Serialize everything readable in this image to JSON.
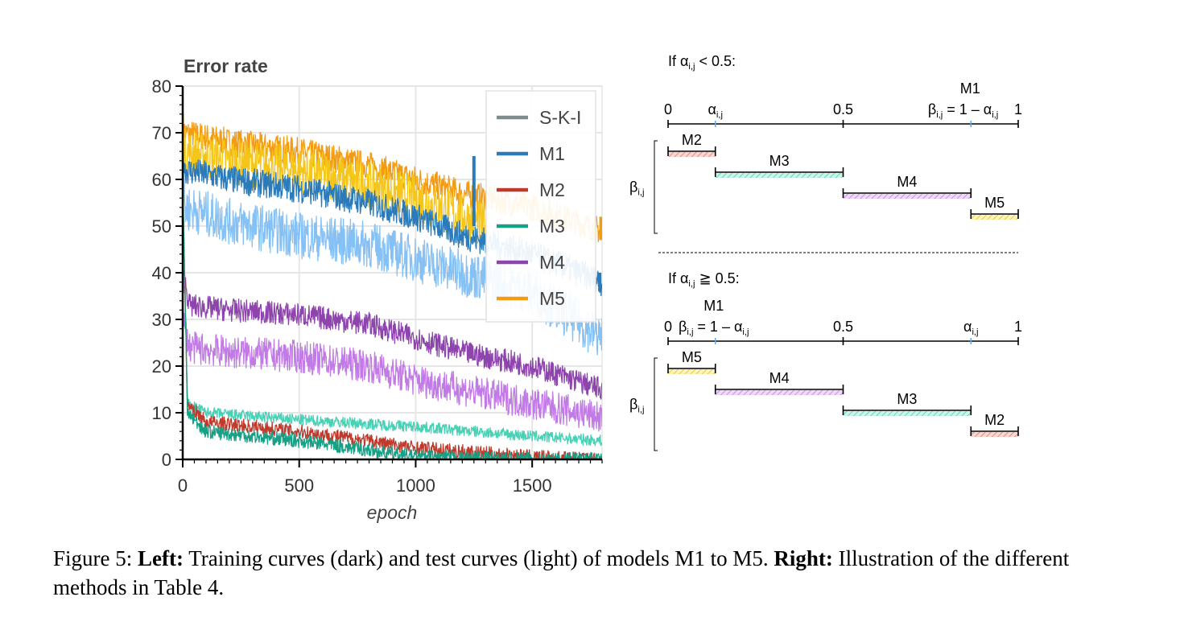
{
  "chart_data": [
    {
      "type": "line",
      "title": "Error rate",
      "xlabel": "epoch",
      "ylabel": "",
      "xlim": [
        0,
        1800
      ],
      "ylim": [
        0,
        80
      ],
      "xticks": [
        0,
        500,
        1000,
        1500
      ],
      "yticks": [
        0,
        10,
        20,
        30,
        40,
        50,
        60,
        70,
        80
      ],
      "grid": true,
      "legend_position": "top-right",
      "legend": [
        "S-K-I",
        "M1",
        "M2",
        "M3",
        "M4",
        "M5"
      ],
      "colors": {
        "S-K-I": "#7f8c8d",
        "M1": "#2b7bba",
        "M2": "#c0392b",
        "M3": "#16a085",
        "M4": "#8e44ad",
        "M5": "#f39c12",
        "M1_test": "#85c1f5",
        "M2_test": "#e07a6e",
        "M3_test": "#48d1b5",
        "M4_test": "#c27be6",
        "M5_test": "#f5c518"
      },
      "series": [
        {
          "name": "M5 (train)",
          "color_key": "M5",
          "noise": 3,
          "x": [
            0,
            10,
            200,
            500,
            800,
            1000,
            1200,
            1500,
            1800
          ],
          "y": [
            72,
            70,
            68,
            66,
            63,
            60,
            57,
            54,
            49
          ]
        },
        {
          "name": "M5 (test)",
          "color_key": "M5_test",
          "noise": 5,
          "x": [
            0,
            10,
            200,
            500,
            800,
            1000,
            1200,
            1300
          ],
          "y": [
            70,
            66,
            64,
            62,
            59,
            56,
            52,
            50
          ]
        },
        {
          "name": "M1 (train)",
          "color_key": "M1",
          "noise": 3,
          "x": [
            0,
            10,
            200,
            500,
            800,
            1000,
            1200,
            1500,
            1800
          ],
          "y": [
            66,
            62,
            60,
            58,
            55,
            52,
            48,
            44,
            38
          ]
        },
        {
          "name": "M1 (test)",
          "color_key": "M1_test",
          "noise": 5,
          "x": [
            0,
            10,
            200,
            500,
            800,
            1000,
            1200,
            1500,
            1800
          ],
          "y": [
            60,
            54,
            51,
            48,
            46,
            43,
            40,
            36,
            26
          ]
        },
        {
          "name": "M4 (train)",
          "color_key": "M4",
          "noise": 2.5,
          "x": [
            0,
            30,
            200,
            500,
            800,
            1000,
            1200,
            1500,
            1800
          ],
          "y": [
            40,
            33,
            32,
            31,
            29,
            26,
            23,
            20,
            15
          ]
        },
        {
          "name": "M4 (test)",
          "color_key": "M4_test",
          "noise": 3.5,
          "x": [
            0,
            30,
            200,
            500,
            800,
            1000,
            1200,
            1500,
            1800
          ],
          "y": [
            30,
            24,
            23,
            22,
            20,
            17,
            15,
            12,
            9
          ]
        },
        {
          "name": "M3 (test)",
          "color_key": "M3_test",
          "noise": 1.2,
          "x": [
            0,
            20,
            100,
            500,
            1000,
            1500,
            1800
          ],
          "y": [
            60,
            12,
            10,
            8.5,
            7,
            5,
            4
          ]
        },
        {
          "name": "M2 (train)",
          "color_key": "M2",
          "noise": 1.5,
          "x": [
            0,
            20,
            100,
            500,
            800,
            1000,
            1500,
            1800
          ],
          "y": [
            60,
            12,
            8,
            6,
            4,
            2.5,
            0.5,
            0
          ]
        },
        {
          "name": "M3 (train)",
          "color_key": "M3",
          "noise": 1.5,
          "x": [
            0,
            20,
            100,
            500,
            800,
            1000,
            1500,
            1800
          ],
          "y": [
            60,
            10,
            6,
            4,
            2,
            0.5,
            0,
            0
          ]
        }
      ],
      "spikes": [
        {
          "color_key": "M1",
          "x": 1250,
          "y_from": 50,
          "y_to": 65
        },
        {
          "color_key": "M1",
          "x": 1790,
          "y_from": 36,
          "y_to": 40
        },
        {
          "color_key": "M5",
          "x": 1795,
          "y_from": 47,
          "y_to": 52
        }
      ]
    },
    {
      "type": "diagram",
      "panels": [
        {
          "condition": "If α",
          "condition_sub": "i,j",
          "condition_rest": " < 0.5:",
          "scale_labels": {
            "zero": "0",
            "alpha": "α",
            "alpha_sub": "i,j",
            "half": "0.5",
            "beta_prefix": "β",
            "beta_sub": "i,j",
            "beta_mid": " = 1 – α",
            "beta_sub2": "i,j",
            "one": "1",
            "m1": "M1"
          },
          "beta_axis_label": "β",
          "beta_axis_sub": "i,j",
          "bars": [
            {
              "label": "M2",
              "from": 0,
              "to": 0.135,
              "color": "#e07a6e",
              "fill": "#fbd7d2"
            },
            {
              "label": "M3",
              "from": 0.135,
              "to": 0.5,
              "color": "#48d1b5",
              "fill": "#cdf3ea"
            },
            {
              "label": "M4",
              "from": 0.5,
              "to": 0.865,
              "color": "#c27be6",
              "fill": "#eed9f8"
            },
            {
              "label": "M5",
              "from": 0.865,
              "to": 1,
              "color": "#e5c200",
              "fill": "#fcf3c2"
            }
          ]
        },
        {
          "condition": "If α",
          "condition_sub": "i,j",
          "condition_rest": " ≧ 0.5:",
          "scale_labels": {
            "zero": "0",
            "beta_prefix": "β",
            "beta_sub": "i,j",
            "beta_mid": " = 1 – α",
            "beta_sub2": "i,j",
            "half": "0.5",
            "alpha": "α",
            "alpha_sub": "i,j",
            "one": "1",
            "m1": "M1"
          },
          "beta_axis_label": "β",
          "beta_axis_sub": "i,j",
          "bars": [
            {
              "label": "M5",
              "from": 0,
              "to": 0.135,
              "color": "#e5c200",
              "fill": "#fcf3c2"
            },
            {
              "label": "M4",
              "from": 0.135,
              "to": 0.5,
              "color": "#c27be6",
              "fill": "#eed9f8"
            },
            {
              "label": "M3",
              "from": 0.5,
              "to": 0.865,
              "color": "#48d1b5",
              "fill": "#cdf3ea"
            },
            {
              "label": "M2",
              "from": 0.865,
              "to": 1,
              "color": "#e07a6e",
              "fill": "#fbd7d2"
            }
          ]
        }
      ]
    }
  ],
  "caption": {
    "label": "Figure 5: ",
    "left_bold": "Left:",
    "left_text": " Training curves (dark) and test curves (light) of models M1 to M5. ",
    "right_bold": "Right:",
    "right_text": " Illustration of the different methods in Table 4."
  }
}
